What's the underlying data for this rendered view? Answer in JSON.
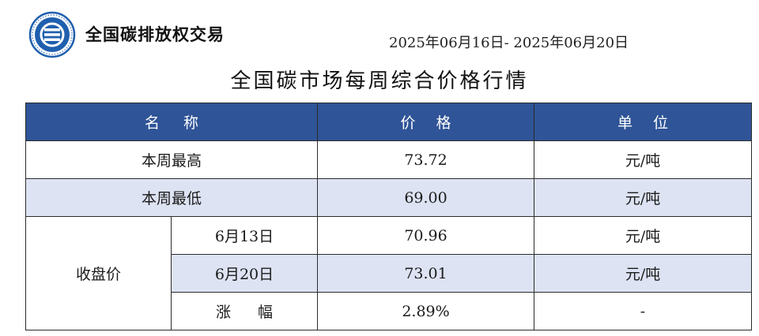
{
  "header": {
    "brand": "全国碳排放权交易",
    "date_range": "2025年06月16日- 2025年06月20日"
  },
  "title": "全国碳市场每周综合价格行情",
  "table": {
    "columns": {
      "name": "名 称",
      "price": "价 格",
      "unit": "单 位"
    },
    "rows": [
      {
        "name": "本周最高",
        "price": "73.72",
        "unit": "元/吨"
      },
      {
        "name": "本周最低",
        "price": "69.00",
        "unit": "元/吨"
      }
    ],
    "closing": {
      "label": "收盘价",
      "rows": [
        {
          "sub": "6月13日",
          "price": "70.96",
          "unit": "元/吨"
        },
        {
          "sub": "6月20日",
          "price": "73.01",
          "unit": "元/吨"
        },
        {
          "sub": "涨 幅",
          "price": "2.89%",
          "unit": "-"
        }
      ]
    }
  },
  "colors": {
    "header_bg": "#2f5497",
    "row_shade": "#dde3f3",
    "logo_blue": "#1f5fae"
  },
  "icons": {
    "logo": "carbon-exchange-logo-icon"
  }
}
